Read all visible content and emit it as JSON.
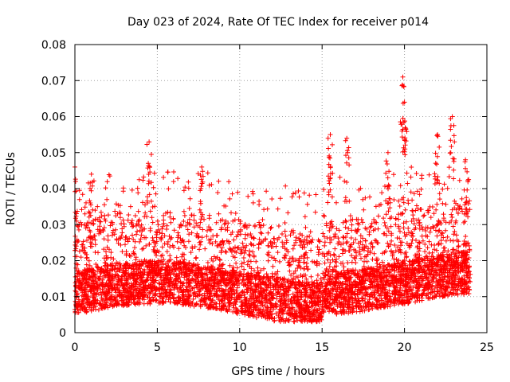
{
  "chart_data": {
    "type": "scatter",
    "title": "Day 023 of 2024, Rate Of TEC Index for receiver p014",
    "xlabel": "GPS time / hours",
    "ylabel": "ROTI / TECUs",
    "xlim": [
      0,
      25
    ],
    "ylim": [
      0,
      0.08
    ],
    "xticks": [
      0,
      5,
      10,
      15,
      20,
      25
    ],
    "xtick_labels": [
      "0",
      "5",
      "10",
      "15",
      "20",
      "25"
    ],
    "yticks": [
      0,
      0.01,
      0.02,
      0.03,
      0.04,
      0.05,
      0.06,
      0.07,
      0.08
    ],
    "ytick_labels": [
      "0",
      "0.01",
      "0.02",
      "0.03",
      "0.04",
      "0.05",
      "0.06",
      "0.07",
      "0.08"
    ],
    "grid": true,
    "marker": "plus",
    "series": [
      {
        "name": "p014 ROTI",
        "color": "#ff0000",
        "data_range_hours": [
          0,
          24
        ],
        "typical_range": [
          0.005,
          0.03
        ],
        "notable_peaks": [
          {
            "x": 0.0,
            "y": 0.046
          },
          {
            "x": 1.0,
            "y": 0.044
          },
          {
            "x": 4.5,
            "y": 0.053
          },
          {
            "x": 7.7,
            "y": 0.046
          },
          {
            "x": 15.5,
            "y": 0.055
          },
          {
            "x": 16.5,
            "y": 0.054
          },
          {
            "x": 19.0,
            "y": 0.05
          },
          {
            "x": 19.9,
            "y": 0.071
          },
          {
            "x": 20.0,
            "y": 0.064
          },
          {
            "x": 22.0,
            "y": 0.055
          },
          {
            "x": 22.9,
            "y": 0.06
          },
          {
            "x": 23.7,
            "y": 0.048
          }
        ]
      }
    ]
  }
}
